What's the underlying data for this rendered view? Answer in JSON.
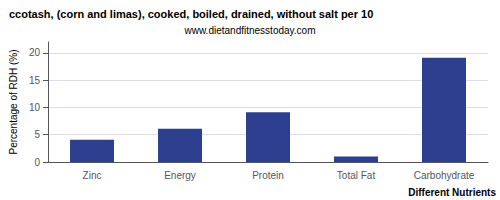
{
  "chart_data": {
    "type": "bar",
    "title": "ccotash, (corn and limas), cooked, boiled, drained, without salt per 10",
    "subtitle": "www.dietandfitnesstoday.com",
    "categories": [
      "Zinc",
      "Energy",
      "Protein",
      "Total Fat",
      "Carbohydrate"
    ],
    "values": [
      4.1,
      6.1,
      9.1,
      1.0,
      19.1
    ],
    "color": "#2e3f8f",
    "ylabel": "Percentage of RDH (%)",
    "xlabel": "Different Nutrients",
    "ylim": [
      0,
      22
    ],
    "yticks": [
      0,
      5,
      10,
      15,
      20
    ],
    "grid": true
  }
}
